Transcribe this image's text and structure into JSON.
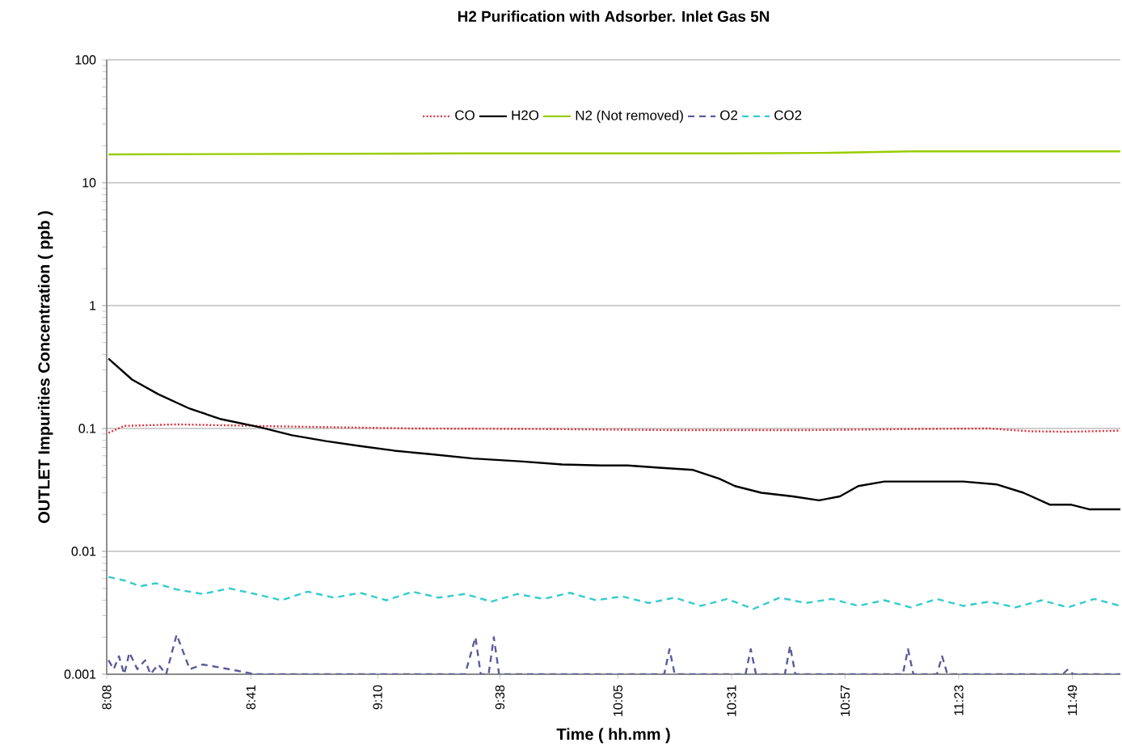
{
  "chart_data": {
    "type": "line",
    "title": "H2 Purification with Adsorber. Inlet Gas 5N",
    "xlabel": "Time ( hh.mm )",
    "ylabel": "OUTLET Impurities Concentration ( ppb )",
    "log": "y",
    "grid": "y",
    "legend": "top",
    "marker": "none",
    "xlim": [
      8.1333,
      12.0
    ],
    "ylim": [
      0.001,
      100
    ],
    "xticks": [
      {
        "value": 8.1333,
        "label": "8:08"
      },
      {
        "value": 8.6833,
        "label": "8:41"
      },
      {
        "value": 9.1667,
        "label": "9:10"
      },
      {
        "value": 9.6333,
        "label": "9:38"
      },
      {
        "value": 10.0833,
        "label": "10:05"
      },
      {
        "value": 10.5167,
        "label": "10:31"
      },
      {
        "value": 10.95,
        "label": "10:57"
      },
      {
        "value": 11.3833,
        "label": "11:23"
      },
      {
        "value": 11.8167,
        "label": "11:49"
      }
    ],
    "yticks": [
      0.001,
      0.01,
      0.1,
      1,
      10,
      100
    ],
    "series": [
      {
        "name": "CO",
        "color": "#e0303a",
        "line_style": "dotted",
        "x": [
          8.14,
          8.2,
          8.4,
          8.8,
          9.3,
          9.8,
          10.3,
          10.8,
          11.2,
          11.5,
          11.65,
          11.8,
          12.0
        ],
        "values": [
          0.092,
          0.105,
          0.108,
          0.104,
          0.1,
          0.099,
          0.097,
          0.097,
          0.099,
          0.1,
          0.095,
          0.094,
          0.096
        ]
      },
      {
        "name": "H2O",
        "color": "#000000",
        "line_style": "solid",
        "x": [
          8.14,
          8.23,
          8.33,
          8.45,
          8.57,
          8.72,
          8.84,
          8.97,
          9.1,
          9.23,
          9.36,
          9.53,
          9.71,
          9.87,
          10.02,
          10.12,
          10.24,
          10.37,
          10.47,
          10.53,
          10.63,
          10.75,
          10.85,
          10.93,
          11.0,
          11.1,
          11.26,
          11.4,
          11.53,
          11.63,
          11.73,
          11.81,
          11.88,
          12.0
        ],
        "values": [
          0.37,
          0.25,
          0.19,
          0.145,
          0.119,
          0.102,
          0.088,
          0.079,
          0.072,
          0.066,
          0.062,
          0.057,
          0.054,
          0.051,
          0.05,
          0.05,
          0.048,
          0.046,
          0.039,
          0.034,
          0.03,
          0.028,
          0.026,
          0.028,
          0.034,
          0.037,
          0.037,
          0.037,
          0.035,
          0.03,
          0.024,
          0.024,
          0.022,
          0.022
        ]
      },
      {
        "name": "N2 (Not removed)",
        "color": "#99cc00",
        "line_style": "solid",
        "x": [
          8.14,
          9.5,
          10.5,
          10.9,
          11.2,
          12.0
        ],
        "values": [
          17,
          17.3,
          17.3,
          17.5,
          18,
          18
        ]
      },
      {
        "name": "O2",
        "color": "#5b5b9b",
        "line_style": "dashed",
        "x": [
          8.14,
          8.16,
          8.18,
          8.2,
          8.22,
          8.25,
          8.28,
          8.3,
          8.33,
          8.36,
          8.4,
          8.45,
          8.5,
          8.6,
          8.7,
          9.0,
          9.5,
          9.54,
          9.56,
          9.59,
          9.61,
          9.63,
          10.0,
          10.26,
          10.28,
          10.3,
          10.57,
          10.59,
          10.61,
          10.72,
          10.74,
          10.76,
          11.17,
          11.19,
          11.21,
          11.3,
          11.32,
          11.34,
          11.78,
          11.8,
          11.82,
          12.0
        ],
        "values": [
          0.0013,
          0.0011,
          0.0014,
          0.001,
          0.0015,
          0.0011,
          0.0013,
          0.001,
          0.0012,
          0.001,
          0.0021,
          0.0011,
          0.0012,
          0.0011,
          0.001,
          0.001,
          0.001,
          0.002,
          0.001,
          0.001,
          0.002,
          0.001,
          0.001,
          0.001,
          0.0016,
          0.001,
          0.001,
          0.0016,
          0.001,
          0.001,
          0.0017,
          0.001,
          0.001,
          0.0016,
          0.001,
          0.001,
          0.0014,
          0.001,
          0.001,
          0.0011,
          0.001,
          0.001
        ]
      },
      {
        "name": "CO2",
        "color": "#33cccc",
        "line_style": "dashed",
        "x": [
          8.14,
          8.2,
          8.26,
          8.32,
          8.4,
          8.5,
          8.6,
          8.7,
          8.8,
          8.9,
          9.0,
          9.1,
          9.2,
          9.3,
          9.4,
          9.5,
          9.6,
          9.7,
          9.8,
          9.9,
          10.0,
          10.1,
          10.2,
          10.3,
          10.4,
          10.5,
          10.6,
          10.7,
          10.8,
          10.9,
          11.0,
          11.1,
          11.2,
          11.3,
          11.4,
          11.5,
          11.6,
          11.7,
          11.8,
          11.9,
          12.0
        ],
        "values": [
          0.0062,
          0.0058,
          0.0052,
          0.0055,
          0.0049,
          0.0045,
          0.005,
          0.0045,
          0.004,
          0.0047,
          0.0042,
          0.0046,
          0.004,
          0.0047,
          0.0042,
          0.0045,
          0.0039,
          0.0045,
          0.0041,
          0.0046,
          0.004,
          0.0043,
          0.0038,
          0.0042,
          0.0036,
          0.0041,
          0.0034,
          0.0042,
          0.0038,
          0.0041,
          0.0036,
          0.004,
          0.0035,
          0.0041,
          0.0036,
          0.0039,
          0.0035,
          0.004,
          0.0035,
          0.0041,
          0.0036
        ]
      }
    ]
  }
}
